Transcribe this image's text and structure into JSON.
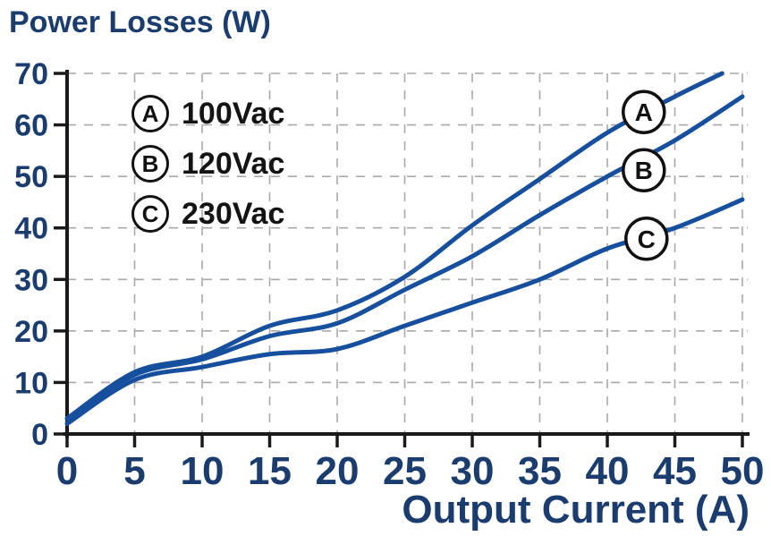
{
  "title": "Power Losses (W)",
  "xlabel": "Output Current (A)",
  "colors": {
    "line": "#164f9e",
    "navy_text": "#1a3c6e",
    "axis": "#1a1a1a",
    "grid": "#a9a9a9",
    "legend_text": "#141414",
    "badge_border": "#111111",
    "background": "#ffffff"
  },
  "chart_data": {
    "type": "line",
    "title": "Power Losses (W)",
    "xlabel": "Output Current (A)",
    "ylabel": "Power Losses (W)",
    "xlim": [
      0,
      50
    ],
    "ylim": [
      0,
      70
    ],
    "xticks": [
      0,
      5,
      10,
      15,
      20,
      25,
      30,
      35,
      40,
      45,
      50
    ],
    "yticks": [
      0,
      10,
      20,
      30,
      40,
      50,
      60,
      70
    ],
    "grid": "dashed",
    "legend_position": "top-left",
    "series": [
      {
        "label": "A",
        "legend": "100Vac",
        "x": [
          0,
          5,
          10,
          15,
          20,
          25,
          30,
          35,
          40,
          45,
          48.5
        ],
        "y": [
          3,
          12,
          15,
          21,
          24,
          30.5,
          40.5,
          49.5,
          58.5,
          65.5,
          70
        ],
        "marker": {
          "x": 42.7,
          "y": 62.5
        }
      },
      {
        "label": "B",
        "legend": "120Vac",
        "x": [
          0,
          5,
          10,
          15,
          20,
          25,
          30,
          35,
          40,
          45,
          50
        ],
        "y": [
          3,
          11.5,
          14.5,
          19,
          21.5,
          28,
          34.5,
          42.5,
          50,
          57,
          65.5
        ],
        "marker": {
          "x": 42.7,
          "y": 51.2
        }
      },
      {
        "label": "C",
        "legend": "230Vac",
        "x": [
          0,
          5,
          10,
          15,
          20,
          25,
          30,
          35,
          40,
          45,
          50
        ],
        "y": [
          2,
          10.5,
          13,
          15.5,
          16.5,
          21,
          25.5,
          30,
          36,
          40,
          45.5
        ],
        "marker": {
          "x": 42.9,
          "y": 37.9
        }
      }
    ]
  }
}
